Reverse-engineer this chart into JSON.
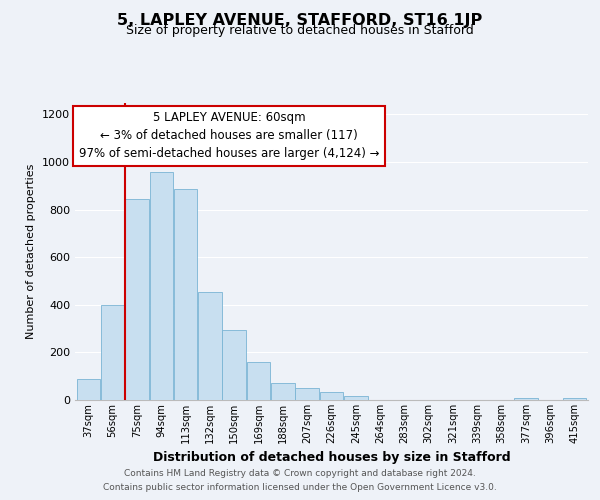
{
  "title": "5, LAPLEY AVENUE, STAFFORD, ST16 1JP",
  "subtitle": "Size of property relative to detached houses in Stafford",
  "xlabel": "Distribution of detached houses by size in Stafford",
  "ylabel": "Number of detached properties",
  "categories": [
    "37sqm",
    "56sqm",
    "75sqm",
    "94sqm",
    "113sqm",
    "132sqm",
    "150sqm",
    "169sqm",
    "188sqm",
    "207sqm",
    "226sqm",
    "245sqm",
    "264sqm",
    "283sqm",
    "302sqm",
    "321sqm",
    "339sqm",
    "358sqm",
    "377sqm",
    "396sqm",
    "415sqm"
  ],
  "values": [
    90,
    400,
    845,
    960,
    885,
    455,
    295,
    160,
    70,
    50,
    33,
    18,
    0,
    0,
    0,
    0,
    0,
    0,
    10,
    0,
    8
  ],
  "bar_color": "#c8dff0",
  "bar_edge_color": "#7ab4d4",
  "marker_line_color": "#cc0000",
  "annotation_line1": "5 LAPLEY AVENUE: 60sqm",
  "annotation_line2": "← 3% of detached houses are smaller (117)",
  "annotation_line3": "97% of semi-detached houses are larger (4,124) →",
  "annotation_box_edge": "#cc0000",
  "footer_line1": "Contains HM Land Registry data © Crown copyright and database right 2024.",
  "footer_line2": "Contains public sector information licensed under the Open Government Licence v3.0.",
  "ylim": [
    0,
    1250
  ],
  "yticks": [
    0,
    200,
    400,
    600,
    800,
    1000,
    1200
  ],
  "bg_color": "#eef2f8",
  "grid_color": "#ffffff"
}
